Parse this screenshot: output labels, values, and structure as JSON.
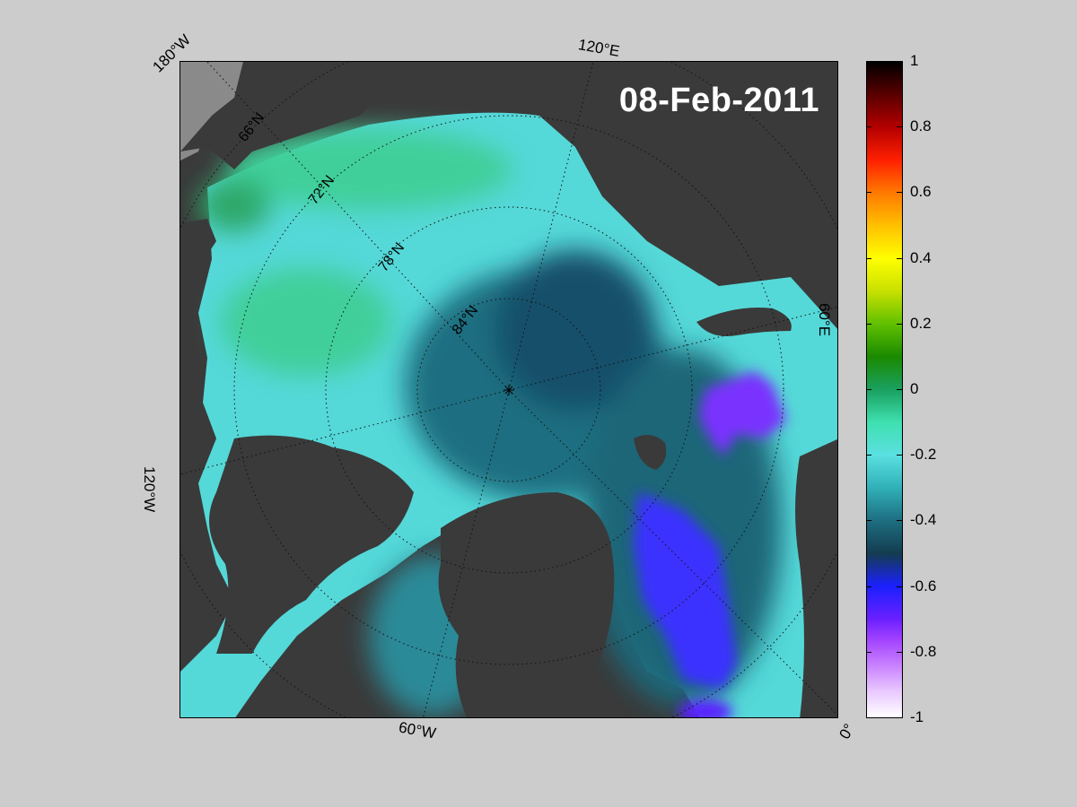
{
  "date": "08-Feb-2011",
  "map_labels": {
    "lon_180w": "180°W",
    "lon_120e": "120°E",
    "lon_60e": "60°E",
    "lon_120w": "120°W",
    "lon_60w": "60°W",
    "lon_0": "0°",
    "lat_66n": "66°N",
    "lat_72n": "72°N",
    "lat_78n": "78°N",
    "lat_84n": "84°N"
  },
  "colorbar": {
    "ticks": [
      "1",
      "0.8",
      "0.6",
      "0.4",
      "0.2",
      "0",
      "-0.2",
      "-0.4",
      "-0.6",
      "-0.8",
      "-1"
    ],
    "range": [
      -1,
      1
    ]
  },
  "colors": {
    "background": "#cccccc",
    "land": "#3a3a3a",
    "anomaly_zero": "#3fe0b0",
    "anomaly_negative": "#1a20ff",
    "anomaly_cyan": "#5ae0e0"
  }
}
